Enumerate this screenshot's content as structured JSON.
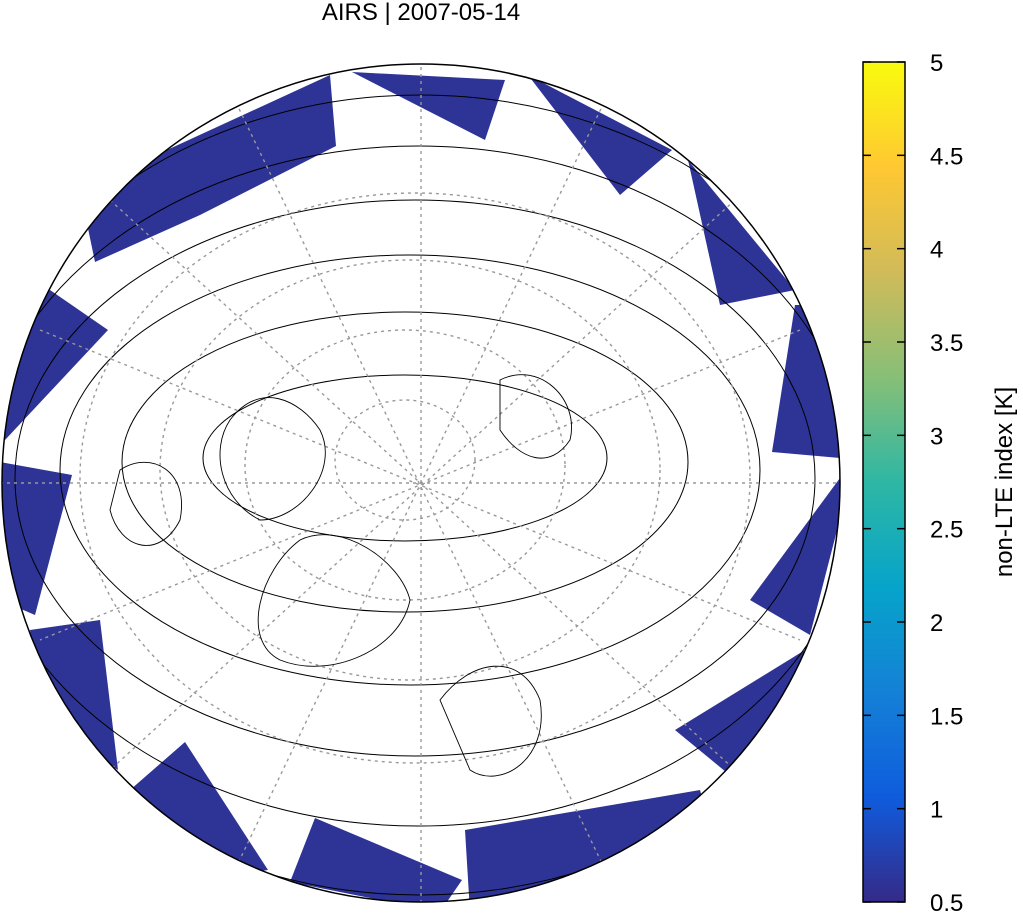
{
  "chart_data": {
    "type": "map",
    "title": "AIRS | 2007-05-14",
    "value": 0.6,
    "colorbar": {
      "label": "non-LTE index [K]",
      "lim": [
        0.5,
        5
      ],
      "ticks": [
        0.5,
        1,
        1.5,
        2,
        2.5,
        3,
        3.5,
        4,
        4.5,
        5
      ],
      "colormap": [
        "#352a87",
        "#0f5cdd",
        "#1481d6",
        "#06a4ca",
        "#2eb7a4",
        "#87bf77",
        "#d1bb59",
        "#fec832",
        "#f9fb0e"
      ]
    }
  }
}
